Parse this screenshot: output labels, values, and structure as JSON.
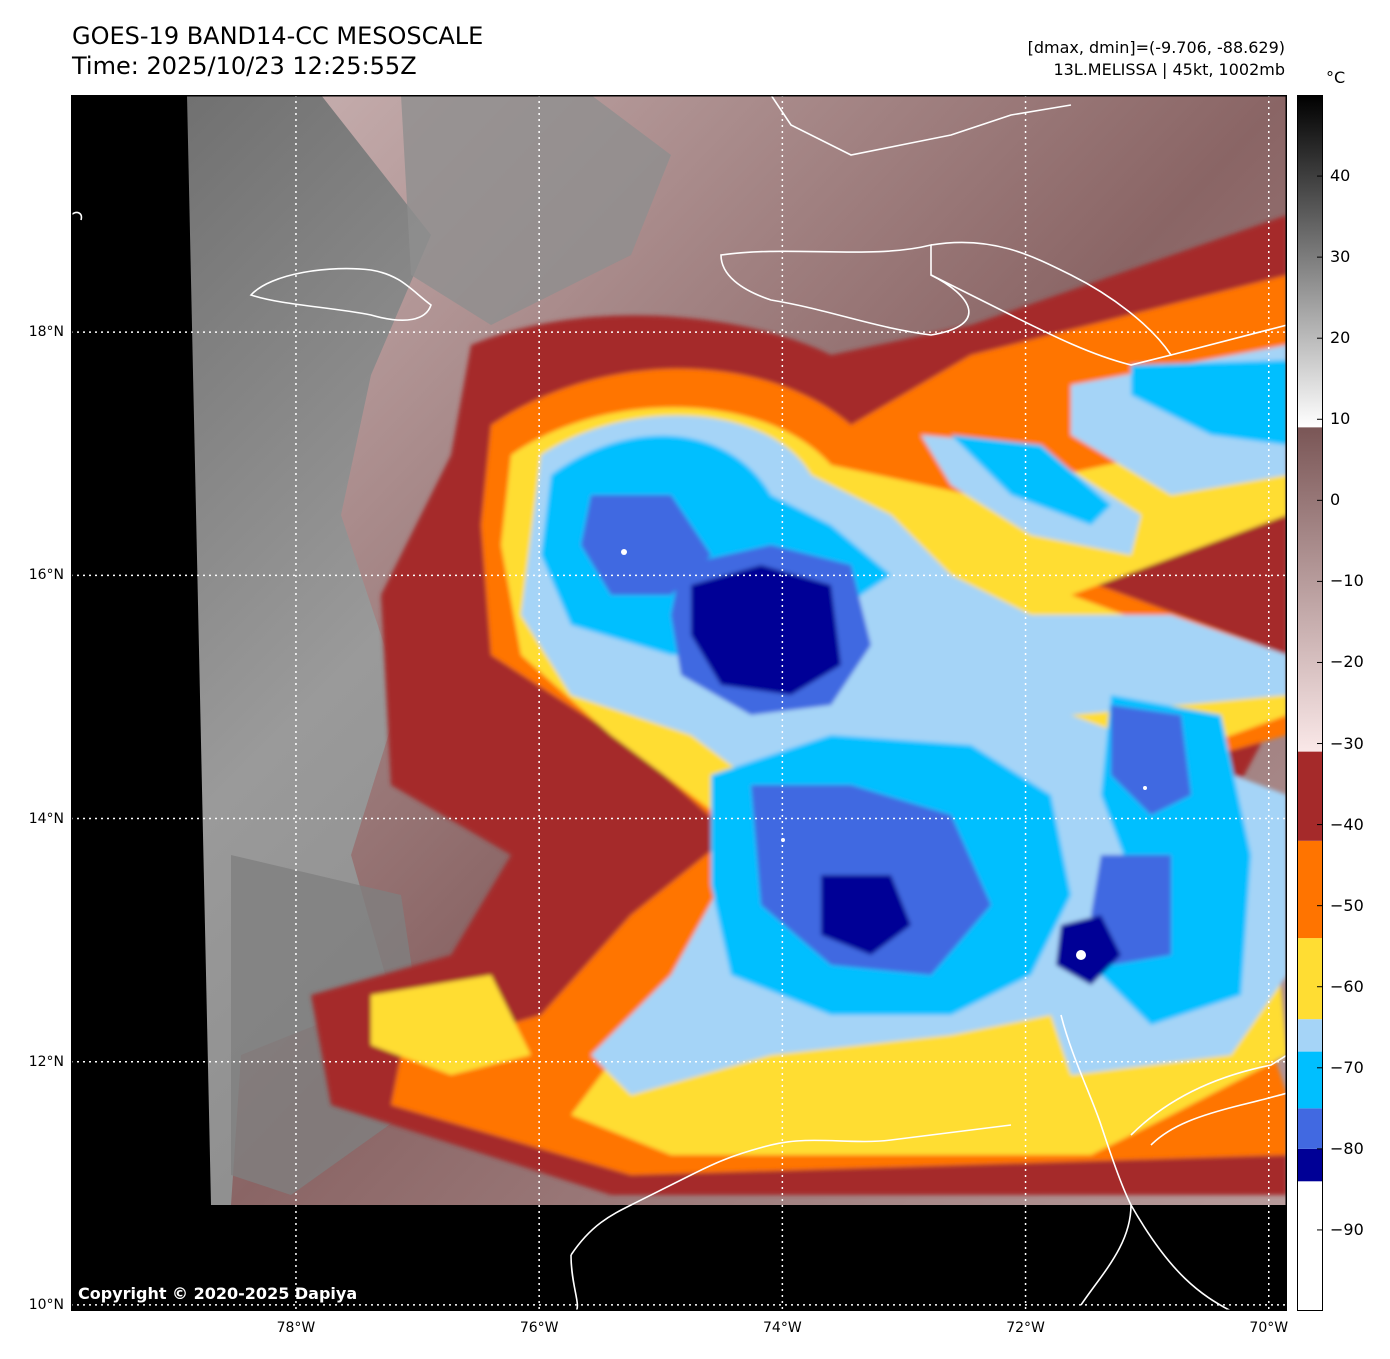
{
  "header": {
    "title": "GOES-19 BAND14-CC MESOSCALE",
    "time": "Time: 2025/10/23 12:25:55Z",
    "stats": "[dmax, dmin]=(-9.706, -88.629)",
    "storm": "13L.MELISSA | 45kt, 1002mb"
  },
  "colorbar": {
    "unit": "°C",
    "range": [
      -100,
      50
    ],
    "ticks": [
      "40",
      "30",
      "20",
      "10",
      "0",
      "−10",
      "−20",
      "−30",
      "−40",
      "−50",
      "−60",
      "−70",
      "−80",
      "−90"
    ],
    "tick_values": [
      40,
      30,
      20,
      10,
      0,
      -10,
      -20,
      -30,
      -40,
      -50,
      -60,
      -70,
      -80,
      -90
    ],
    "bands": [
      {
        "from": -100,
        "to": -84,
        "color": "#ffffff"
      },
      {
        "from": -84,
        "to": -80,
        "color": "#000096"
      },
      {
        "from": -80,
        "to": -75,
        "color": "#4169e1"
      },
      {
        "from": -75,
        "to": -68,
        "color": "#00bfff"
      },
      {
        "from": -68,
        "to": -64,
        "color": "#a5d4f7"
      },
      {
        "from": -64,
        "to": -54,
        "color": "#ffdd33"
      },
      {
        "from": -54,
        "to": -42,
        "color": "#ff7400"
      },
      {
        "from": -42,
        "to": -31,
        "color": "#a52a2a"
      }
    ]
  },
  "map": {
    "lat_labels": [
      "18°N",
      "16°N",
      "14°N",
      "12°N",
      "10°N"
    ],
    "lat_values": [
      18,
      16,
      14,
      12,
      10
    ],
    "lon_labels": [
      "78°W",
      "76°W",
      "74°W",
      "72°W",
      "70°W"
    ],
    "lon_values": [
      -78,
      -76,
      -74,
      -72,
      -70
    ],
    "lon_range": [
      -79.85,
      -69.85
    ],
    "lat_range": [
      9.95,
      19.95
    ],
    "copyright": "Copyright © 2020-2025 Dapiya"
  }
}
